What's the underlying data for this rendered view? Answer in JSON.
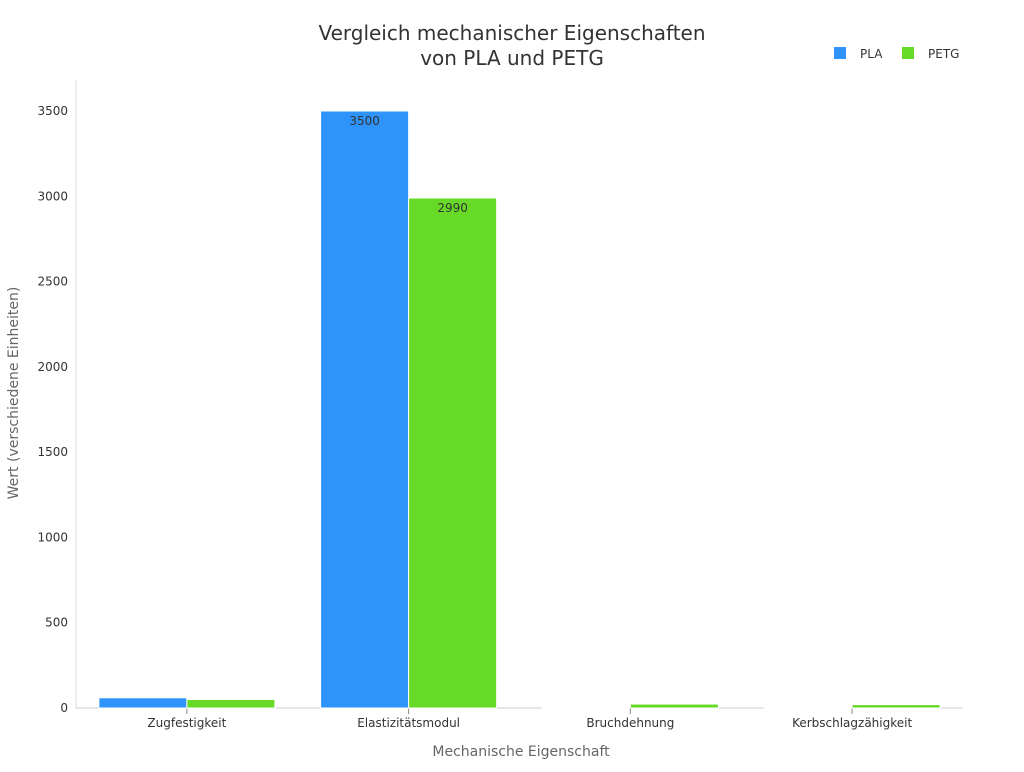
{
  "chart_data": {
    "type": "bar",
    "title": [
      "Vergleich mechanischer Eigenschaften",
      "von PLA und PETG"
    ],
    "xlabel": "Mechanische Eigenschaft",
    "ylabel": "Wert (verschiedene Einheiten)",
    "categories": [
      "Zugfestigkeit",
      "Elastizitätsmodul",
      "Bruchdehnung",
      "Kerbschlagzähigkeit"
    ],
    "series": [
      {
        "name": "PLA",
        "color": "#2e93fa",
        "values": [
          60,
          3500,
          6,
          5
        ]
      },
      {
        "name": "PETG",
        "color": "#66da26",
        "values": [
          50,
          2990,
          23,
          20
        ]
      }
    ],
    "ylim": [
      0,
      3700
    ],
    "yticks": [
      0,
      500,
      1000,
      1500,
      2000,
      2500,
      3000,
      3500
    ],
    "grid": false,
    "legend": "top-right"
  }
}
